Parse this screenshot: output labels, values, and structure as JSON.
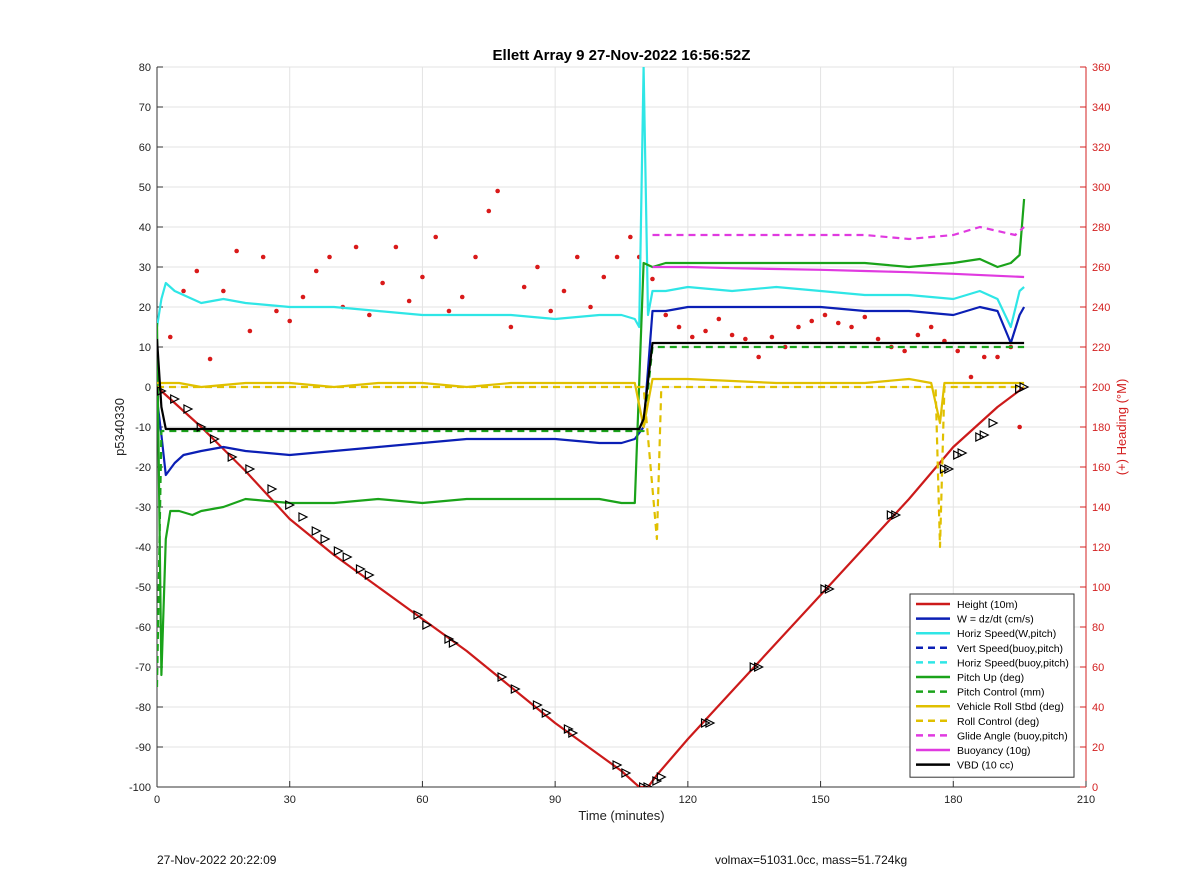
{
  "footer": {
    "timestamp": "27-Nov-2022 20:22:09",
    "info": "volmax=51031.0cc, mass=51.724kg"
  },
  "chart_data": {
    "type": "line",
    "title": "Ellett Array 9 27-Nov-2022 16:56:52Z",
    "xlabel": "Time (minutes)",
    "ylabel": "p5340330",
    "ylabel_right": "(+) Heading (°M)",
    "xlim": [
      0,
      210
    ],
    "ylim": [
      -100,
      80
    ],
    "ylim_right": [
      0,
      360
    ],
    "x_ticks": [
      0,
      30,
      60,
      90,
      120,
      150,
      180,
      210
    ],
    "y_ticks": [
      -100,
      -90,
      -80,
      -70,
      -60,
      -50,
      -40,
      -30,
      -20,
      -10,
      0,
      10,
      20,
      30,
      40,
      50,
      60,
      70,
      80
    ],
    "y_ticks_right": [
      0,
      20,
      40,
      60,
      80,
      100,
      120,
      140,
      160,
      180,
      200,
      220,
      240,
      260,
      280,
      300,
      320,
      340,
      360
    ],
    "grid": true,
    "legend_position": "bottom-right",
    "series": [
      {
        "name": "Height (10m)",
        "color": "#cc1a1a",
        "style": "solid",
        "x": [
          0,
          2,
          5,
          10,
          20,
          30,
          40,
          50,
          60,
          70,
          80,
          90,
          100,
          105,
          109,
          111,
          113,
          120,
          130,
          140,
          150,
          160,
          170,
          180,
          190,
          196
        ],
        "y": [
          0,
          -2,
          -5,
          -10,
          -21,
          -33,
          -42,
          -50,
          -58,
          -66,
          -75,
          -84,
          -92,
          -96,
          -100,
          -100,
          -97,
          -88,
          -76,
          -64,
          -52,
          -40,
          -28,
          -15,
          -5,
          0
        ]
      },
      {
        "name": "W = dz/dt (cm/s)",
        "color": "#0b1fb5",
        "style": "solid",
        "x": [
          0,
          1,
          2,
          4,
          6,
          10,
          15,
          20,
          30,
          40,
          50,
          60,
          70,
          80,
          90,
          100,
          105,
          108,
          110,
          112,
          115,
          120,
          130,
          140,
          150,
          160,
          170,
          180,
          186,
          190,
          193,
          195,
          196
        ],
        "y": [
          -3,
          -12,
          -22,
          -19,
          -17,
          -16,
          -15,
          -16,
          -17,
          -16,
          -15,
          -14,
          -13,
          -13,
          -13,
          -14,
          -14,
          -13,
          -10,
          19,
          19,
          20,
          20,
          20,
          20,
          19,
          19,
          18,
          20,
          19,
          11,
          18,
          20
        ]
      },
      {
        "name": "Horiz Speed(W,pitch)",
        "color": "#2fe6e6",
        "style": "solid",
        "x": [
          0,
          1,
          2,
          4,
          6,
          10,
          15,
          20,
          30,
          40,
          50,
          60,
          70,
          80,
          90,
          100,
          105,
          108,
          109,
          110,
          111,
          112,
          115,
          120,
          130,
          140,
          150,
          160,
          170,
          180,
          186,
          190,
          193,
          195,
          196
        ],
        "y": [
          15,
          22,
          26,
          24,
          23,
          21,
          22,
          21,
          20,
          20,
          19,
          18,
          18,
          18,
          17,
          18,
          18,
          17,
          15,
          80,
          18,
          24,
          24,
          25,
          24,
          25,
          24,
          23,
          23,
          22,
          24,
          22,
          15,
          24,
          25
        ]
      },
      {
        "name": "Vert Speed(buoy,pitch)",
        "color": "#0b1fb5",
        "style": "dashed",
        "x": [],
        "y": []
      },
      {
        "name": "Horiz Speed(buoy,pitch)",
        "color": "#2fe6e6",
        "style": "dashed",
        "x": [],
        "y": []
      },
      {
        "name": "Pitch Up (deg)",
        "color": "#1aa31a",
        "style": "solid",
        "x": [
          0,
          1,
          2,
          3,
          5,
          8,
          10,
          15,
          20,
          30,
          40,
          50,
          60,
          70,
          80,
          90,
          100,
          105,
          108,
          110,
          112,
          115,
          120,
          130,
          140,
          150,
          160,
          170,
          180,
          186,
          190,
          193,
          195,
          196
        ],
        "y": [
          16,
          -72,
          -38,
          -31,
          -31,
          -32,
          -31,
          -30,
          -28,
          -29,
          -29,
          -28,
          -29,
          -28,
          -28,
          -28,
          -28,
          -29,
          -29,
          31,
          30,
          31,
          31,
          31,
          31,
          31,
          31,
          30,
          31,
          32,
          30,
          31,
          33,
          47
        ]
      },
      {
        "name": "Pitch Control (mm)",
        "color": "#1aa31a",
        "style": "dashed",
        "x": [
          0,
          1,
          2,
          5,
          20,
          40,
          60,
          80,
          100,
          109,
          110,
          112,
          120,
          140,
          160,
          180,
          196
        ],
        "y": [
          -75,
          -11,
          -11,
          -11,
          -11,
          -11,
          -11,
          -11,
          -11,
          -11,
          -11,
          10,
          10,
          10,
          10,
          10,
          10
        ]
      },
      {
        "name": "Vehicle Roll Stbd (deg)",
        "color": "#e0c000",
        "style": "solid",
        "x": [
          0,
          5,
          10,
          20,
          30,
          40,
          50,
          60,
          70,
          80,
          90,
          100,
          108,
          110,
          112,
          120,
          140,
          160,
          170,
          175,
          177,
          178,
          180,
          190,
          196
        ],
        "y": [
          1,
          1,
          0,
          1,
          1,
          0,
          1,
          1,
          0,
          1,
          1,
          1,
          1,
          -10,
          2,
          2,
          1,
          1,
          2,
          1,
          -9,
          1,
          1,
          1,
          1
        ]
      },
      {
        "name": "Roll Control (deg)",
        "color": "#e0c000",
        "style": "dashed",
        "x": [
          0,
          10,
          20,
          30,
          40,
          50,
          60,
          70,
          80,
          90,
          100,
          108,
          110,
          113,
          114,
          120,
          140,
          160,
          176,
          177,
          178,
          190,
          196
        ],
        "y": [
          0,
          0,
          0,
          0,
          0,
          0,
          0,
          0,
          0,
          0,
          0,
          0,
          0,
          -38,
          0,
          0,
          0,
          0,
          0,
          -40,
          0,
          0,
          0
        ]
      },
      {
        "name": "Glide Angle (buoy,pitch)",
        "color": "#e03ae0",
        "style": "dashed",
        "x": [
          112,
          120,
          130,
          140,
          150,
          160,
          170,
          180,
          186,
          190,
          194,
          196
        ],
        "y": [
          38,
          38,
          38,
          38,
          38,
          38,
          37,
          38,
          40,
          39,
          38,
          40
        ]
      },
      {
        "name": "Buoyancy (10g)",
        "color": "#e03ae0",
        "style": "solid",
        "x": [
          112,
          120,
          130,
          140,
          150,
          160,
          170,
          180,
          190,
          196
        ],
        "y": [
          30,
          30,
          29.7,
          29.5,
          29.3,
          29,
          28.7,
          28.3,
          27.8,
          27.5
        ]
      },
      {
        "name": "VBD (10 cc)",
        "color": "#000000",
        "style": "solid",
        "x": [
          0,
          1,
          2,
          100,
          109,
          110,
          112,
          120,
          196
        ],
        "y": [
          12,
          -5,
          -10.5,
          -10.5,
          -10.5,
          -8,
          11,
          11,
          11
        ]
      }
    ],
    "heading_series": {
      "color": "#d91a1a",
      "style": "dots",
      "axis": "right",
      "x": [
        3,
        6,
        9,
        12,
        15,
        18,
        21,
        24,
        27,
        30,
        33,
        36,
        39,
        42,
        45,
        48,
        51,
        54,
        57,
        60,
        63,
        66,
        69,
        72,
        75,
        77,
        80,
        83,
        86,
        89,
        92,
        95,
        98,
        101,
        104,
        107,
        109,
        112,
        115,
        118,
        121,
        124,
        127,
        130,
        133,
        136,
        139,
        142,
        145,
        148,
        151,
        154,
        157,
        160,
        163,
        166,
        169,
        172,
        175,
        178,
        181,
        184,
        187,
        190,
        193,
        195
      ],
      "y": [
        225,
        248,
        258,
        214,
        248,
        268,
        228,
        265,
        238,
        233,
        245,
        258,
        265,
        240,
        270,
        236,
        252,
        270,
        243,
        255,
        275,
        238,
        245,
        265,
        288,
        298,
        230,
        250,
        260,
        238,
        248,
        265,
        240,
        255,
        265,
        275,
        265,
        254,
        236,
        230,
        225,
        228,
        234,
        226,
        224,
        215,
        225,
        220,
        230,
        233,
        236,
        232,
        230,
        235,
        224,
        220,
        218,
        226,
        230,
        223,
        218,
        205,
        215,
        215,
        220,
        180
      ]
    },
    "markers": {
      "color": "#000000",
      "style": "triangles",
      "x": [
        1,
        4,
        7,
        10,
        13,
        17,
        21,
        26,
        30,
        33,
        36,
        38,
        41,
        43,
        46,
        48,
        59,
        61,
        66,
        67,
        78,
        81,
        86,
        88,
        93,
        94,
        104,
        106,
        110,
        111,
        113,
        114,
        124,
        125,
        135,
        136,
        151,
        152,
        166,
        167,
        178,
        179,
        181,
        182,
        186,
        187,
        189,
        195,
        196
      ],
      "y": [
        -1,
        -3,
        -5.5,
        -10,
        -13,
        -17.5,
        -20.5,
        -25.5,
        -29.5,
        -32.5,
        -36,
        -38,
        -41,
        -42.5,
        -45.5,
        -47,
        -57,
        -59.5,
        -63,
        -64,
        -72.5,
        -75.5,
        -79.5,
        -81.5,
        -85.5,
        -86.5,
        -94.5,
        -96.5,
        -100,
        -100,
        -98.5,
        -97.5,
        -84,
        -84,
        -70,
        -70,
        -50.5,
        -50.5,
        -32,
        -32,
        -20.5,
        -20.5,
        -17,
        -16.5,
        -12.5,
        -12,
        -9,
        -0.5,
        0
      ]
    }
  }
}
